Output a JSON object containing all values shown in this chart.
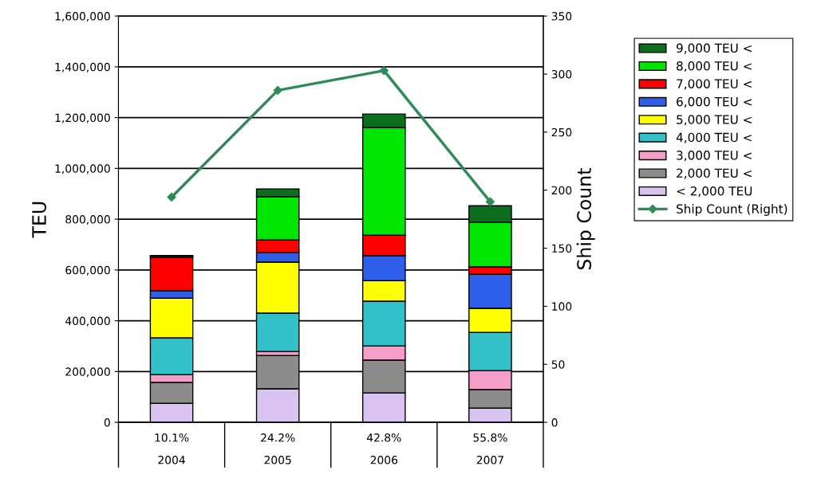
{
  "chart_data": {
    "type": "bar",
    "stacked": true,
    "ylabel": "TEU",
    "y2label": "Ship Count",
    "categories": [
      "2004",
      "2005",
      "2006",
      "2007"
    ],
    "series": [
      {
        "name": "< 2,000 TEU",
        "color": "#d9c3f0",
        "values": [
          75000,
          132000,
          116000,
          56000
        ]
      },
      {
        "name": "2,000 TEU <",
        "color": "#8c8c8c",
        "values": [
          82000,
          131000,
          129000,
          73000
        ]
      },
      {
        "name": "3,000 TEU <",
        "color": "#f59fc8",
        "values": [
          31000,
          16000,
          56000,
          75000
        ]
      },
      {
        "name": "4,000 TEU <",
        "color": "#33c0c8",
        "values": [
          145000,
          151000,
          176000,
          150000
        ]
      },
      {
        "name": "5,000 TEU <",
        "color": "#ffff00",
        "values": [
          156000,
          201000,
          81000,
          95000
        ]
      },
      {
        "name": "6,000 TEU <",
        "color": "#2f5fe8",
        "values": [
          29000,
          37000,
          98000,
          134000
        ]
      },
      {
        "name": "7,000 TEU <",
        "color": "#ff0000",
        "values": [
          131000,
          50000,
          81000,
          29000
        ]
      },
      {
        "name": "8,000 TEU <",
        "color": "#00e600",
        "values": [
          5000,
          170000,
          424000,
          175000
        ]
      },
      {
        "name": "9,000 TEU <",
        "color": "#0a6e1e",
        "values": [
          3000,
          31000,
          53000,
          66000
        ]
      },
      {
        "name": "Ship Count (Right)",
        "type": "line",
        "axis": "y2",
        "color": "#2e8b57",
        "marker": "diamond",
        "values": [
          194,
          286,
          303,
          190
        ]
      }
    ],
    "ylim": [
      0,
      1600000
    ],
    "yticks": [
      0,
      {
        "value": 200000,
        "label": "200,000"
      },
      {
        "value": 400000,
        "label": "400,000"
      },
      {
        "value": 600000,
        "label": "600,000"
      },
      {
        "value": 800000,
        "label": "800,000"
      },
      {
        "value": 1000000,
        "label": "1,000,000"
      },
      {
        "value": 1200000,
        "label": "1,200,000"
      },
      {
        "value": 1400000,
        "label": "1,400,000"
      },
      {
        "value": 1600000,
        "label": "1,600,000"
      }
    ],
    "y2lim": [
      0,
      350
    ],
    "y2ticks": [
      0,
      50,
      100,
      150,
      200,
      250,
      300,
      350
    ],
    "grid": "y",
    "legend": "right",
    "annotations": [
      "10.1%",
      "24.2%",
      "42.8%",
      "55.8%"
    ]
  }
}
